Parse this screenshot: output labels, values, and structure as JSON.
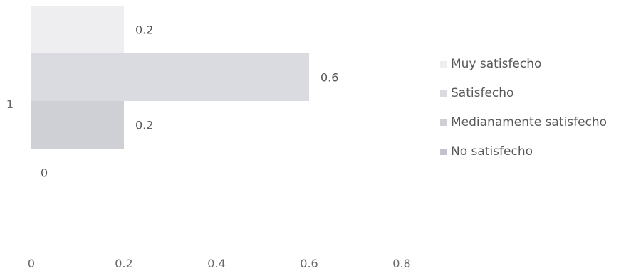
{
  "chart_data": {
    "type": "bar",
    "orientation": "horizontal",
    "categories": [
      "1"
    ],
    "series": [
      {
        "name": "Muy satisfecho",
        "values": [
          0.2
        ],
        "color": "#eeeef1"
      },
      {
        "name": "Satisfecho",
        "values": [
          0.6
        ],
        "color": "#dadbe0"
      },
      {
        "name": "Medianamente satisfecho",
        "values": [
          0.2
        ],
        "color": "#cfd0d6"
      },
      {
        "name": "No satisfecho",
        "values": [
          0
        ],
        "color": "#c3c4cb"
      }
    ],
    "data_labels": [
      "0.2",
      "0.6",
      "0.2",
      "0"
    ],
    "x_ticks": [
      "0",
      "0.2",
      "0.4",
      "0.6",
      "0.8"
    ],
    "xlim": [
      0,
      0.8
    ],
    "grid": false,
    "legend": {
      "position": "right"
    },
    "title": "",
    "xlabel": "",
    "ylabel": ""
  }
}
